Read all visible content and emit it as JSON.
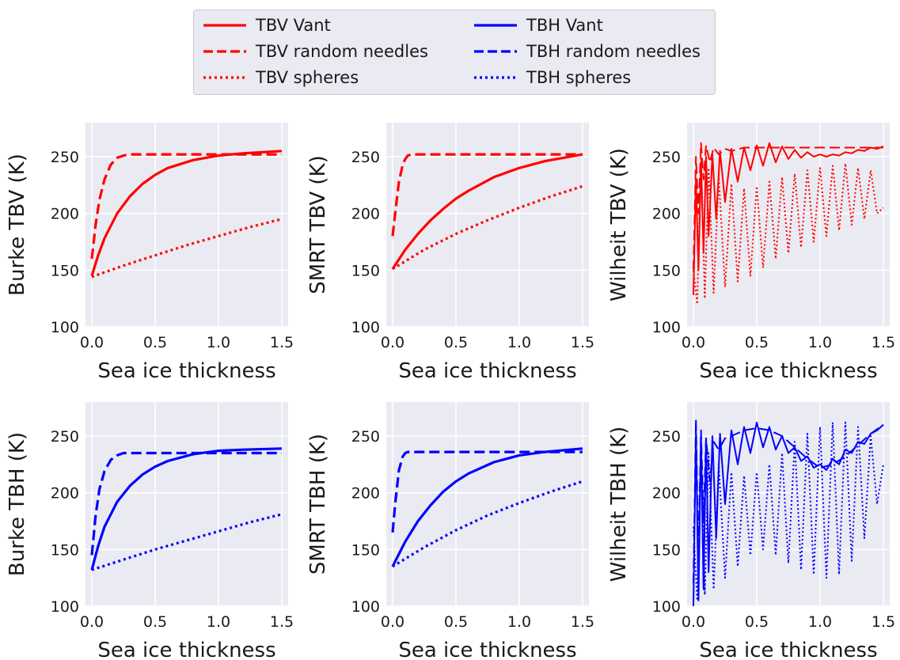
{
  "legend": {
    "items": [
      {
        "label": "TBV Vant",
        "color": "#ff0000",
        "style": "solid"
      },
      {
        "label": "TBV random needles",
        "color": "#ff0000",
        "style": "dashed"
      },
      {
        "label": "TBV spheres",
        "color": "#ff0000",
        "style": "dotted"
      },
      {
        "label": "TBH Vant",
        "color": "#0000ff",
        "style": "solid"
      },
      {
        "label": "TBH random needles",
        "color": "#0000ff",
        "style": "dashed"
      },
      {
        "label": "TBH spheres",
        "color": "#0000ff",
        "style": "dotted"
      }
    ]
  },
  "chart_data": [
    {
      "type": "line",
      "xlabel": "Sea ice thickness",
      "ylabel": "Burke TBV (K)",
      "xlim": [
        -0.05,
        1.55
      ],
      "ylim": [
        100,
        280
      ],
      "xticks": [
        "0.0",
        "0.5",
        "1.0",
        "1.5"
      ],
      "yticks": [
        "100",
        "150",
        "200",
        "250"
      ],
      "grid": true,
      "series": [
        {
          "name": "TBV Vant",
          "color": "#ff0000",
          "style": "solid",
          "x": [
            0,
            0.05,
            0.1,
            0.2,
            0.3,
            0.4,
            0.5,
            0.6,
            0.8,
            1.0,
            1.2,
            1.5
          ],
          "y": [
            145,
            163,
            178,
            200,
            215,
            226,
            234,
            240,
            247,
            251,
            253,
            255
          ]
        },
        {
          "name": "TBV random needles",
          "color": "#ff0000",
          "style": "dashed",
          "x": [
            0,
            0.03,
            0.06,
            0.1,
            0.15,
            0.2,
            0.25,
            0.3,
            0.5,
            1.0,
            1.5
          ],
          "y": [
            160,
            190,
            212,
            230,
            243,
            249,
            251,
            252,
            252,
            252,
            252
          ]
        },
        {
          "name": "TBV spheres",
          "color": "#ff0000",
          "style": "dotted",
          "x": [
            0,
            0.25,
            0.5,
            0.75,
            1.0,
            1.25,
            1.5
          ],
          "y": [
            144,
            154,
            163,
            172,
            180,
            188,
            195
          ]
        }
      ]
    },
    {
      "type": "line",
      "xlabel": "Sea ice thickness",
      "ylabel": "SMRT TBV (K)",
      "xlim": [
        -0.05,
        1.55
      ],
      "ylim": [
        100,
        280
      ],
      "xticks": [
        "0.0",
        "0.5",
        "1.0",
        "1.5"
      ],
      "yticks": [
        "100",
        "150",
        "200",
        "250"
      ],
      "grid": true,
      "series": [
        {
          "name": "TBV Vant",
          "color": "#ff0000",
          "style": "solid",
          "x": [
            0,
            0.1,
            0.2,
            0.3,
            0.4,
            0.5,
            0.6,
            0.8,
            1.0,
            1.2,
            1.5
          ],
          "y": [
            151,
            168,
            182,
            194,
            204,
            213,
            220,
            232,
            240,
            246,
            252
          ]
        },
        {
          "name": "TBV random needles",
          "color": "#ff0000",
          "style": "dashed",
          "x": [
            0,
            0.02,
            0.05,
            0.08,
            0.1,
            0.12,
            0.15,
            0.2,
            0.5,
            1.0,
            1.5
          ],
          "y": [
            180,
            200,
            228,
            243,
            248,
            251,
            252,
            252,
            252,
            252,
            252
          ]
        },
        {
          "name": "TBV spheres",
          "color": "#ff0000",
          "style": "dotted",
          "x": [
            0,
            0.25,
            0.5,
            0.75,
            1.0,
            1.25,
            1.5
          ],
          "y": [
            151,
            168,
            182,
            194,
            205,
            215,
            224
          ]
        }
      ]
    },
    {
      "type": "line",
      "xlabel": "Sea ice thickness",
      "ylabel": "Wilheit TBV (K)",
      "xlim": [
        -0.05,
        1.55
      ],
      "ylim": [
        100,
        280
      ],
      "xticks": [
        "0.0",
        "0.5",
        "1.0",
        "1.5"
      ],
      "yticks": [
        "100",
        "150",
        "200",
        "250"
      ],
      "grid": true,
      "series": [
        {
          "name": "TBV Vant",
          "color": "#ff0000",
          "style": "solid",
          "x": [
            0.0,
            0.02,
            0.04,
            0.06,
            0.08,
            0.1,
            0.12,
            0.15,
            0.18,
            0.21,
            0.25,
            0.3,
            0.35,
            0.4,
            0.45,
            0.5,
            0.55,
            0.6,
            0.65,
            0.7,
            0.75,
            0.8,
            0.85,
            0.9,
            0.95,
            1.0,
            1.05,
            1.1,
            1.15,
            1.2,
            1.25,
            1.3,
            1.35,
            1.4,
            1.45,
            1.5
          ],
          "y": [
            128,
            230,
            150,
            245,
            165,
            250,
            180,
            252,
            195,
            255,
            210,
            257,
            228,
            258,
            238,
            260,
            242,
            262,
            245,
            259,
            248,
            256,
            249,
            254,
            250,
            252,
            250,
            252,
            251,
            254,
            253,
            256,
            255,
            258,
            257,
            259
          ]
        },
        {
          "name": "TBV random needles",
          "color": "#ff0000",
          "style": "dashed",
          "x": [
            0.0,
            0.02,
            0.04,
            0.06,
            0.08,
            0.1,
            0.13,
            0.16,
            0.2,
            0.25,
            0.3,
            0.4,
            0.5,
            0.6,
            0.8,
            1.0,
            1.2,
            1.5
          ],
          "y": [
            150,
            250,
            200,
            262,
            230,
            260,
            245,
            258,
            252,
            257,
            255,
            258,
            258,
            258,
            258,
            258,
            258,
            258
          ]
        },
        {
          "name": "TBV spheres",
          "color": "#ff0000",
          "style": "dotted",
          "x": [
            0.0,
            0.03,
            0.06,
            0.09,
            0.12,
            0.16,
            0.2,
            0.25,
            0.3,
            0.35,
            0.4,
            0.45,
            0.5,
            0.55,
            0.6,
            0.65,
            0.7,
            0.75,
            0.8,
            0.85,
            0.9,
            0.95,
            1.0,
            1.05,
            1.1,
            1.15,
            1.2,
            1.25,
            1.3,
            1.35,
            1.4,
            1.45,
            1.5
          ],
          "y": [
            150,
            120,
            250,
            125,
            240,
            130,
            232,
            135,
            226,
            140,
            222,
            145,
            224,
            152,
            228,
            160,
            232,
            165,
            235,
            170,
            238,
            175,
            240,
            180,
            242,
            185,
            244,
            190,
            240,
            195,
            238,
            200,
            205
          ]
        }
      ]
    },
    {
      "type": "line",
      "xlabel": "Sea ice thickness",
      "ylabel": "Burke TBH (K)",
      "xlim": [
        -0.05,
        1.55
      ],
      "ylim": [
        100,
        280
      ],
      "xticks": [
        "0.0",
        "0.5",
        "1.0",
        "1.5"
      ],
      "yticks": [
        "100",
        "150",
        "200",
        "250"
      ],
      "grid": true,
      "series": [
        {
          "name": "TBH Vant",
          "color": "#0000ff",
          "style": "solid",
          "x": [
            0,
            0.05,
            0.1,
            0.2,
            0.3,
            0.4,
            0.5,
            0.6,
            0.8,
            1.0,
            1.2,
            1.5
          ],
          "y": [
            132,
            153,
            170,
            192,
            206,
            216,
            223,
            228,
            234,
            237,
            238,
            239
          ]
        },
        {
          "name": "TBH random needles",
          "color": "#0000ff",
          "style": "dashed",
          "x": [
            0,
            0.03,
            0.06,
            0.1,
            0.15,
            0.2,
            0.25,
            0.3,
            0.5,
            1.0,
            1.5
          ],
          "y": [
            145,
            180,
            203,
            219,
            229,
            233,
            235,
            235,
            235,
            235,
            235
          ]
        },
        {
          "name": "TBH spheres",
          "color": "#0000ff",
          "style": "dotted",
          "x": [
            0,
            0.25,
            0.5,
            0.75,
            1.0,
            1.25,
            1.5
          ],
          "y": [
            132,
            141,
            150,
            158,
            166,
            174,
            181
          ]
        }
      ]
    },
    {
      "type": "line",
      "xlabel": "Sea ice thickness",
      "ylabel": "SMRT TBH (K)",
      "xlim": [
        -0.05,
        1.55
      ],
      "ylim": [
        100,
        280
      ],
      "xticks": [
        "0.0",
        "0.5",
        "1.0",
        "1.5"
      ],
      "yticks": [
        "100",
        "150",
        "200",
        "250"
      ],
      "grid": true,
      "series": [
        {
          "name": "TBH Vant",
          "color": "#0000ff",
          "style": "solid",
          "x": [
            0,
            0.1,
            0.2,
            0.3,
            0.4,
            0.5,
            0.6,
            0.8,
            1.0,
            1.2,
            1.5
          ],
          "y": [
            135,
            157,
            175,
            189,
            201,
            210,
            217,
            227,
            233,
            236,
            239
          ]
        },
        {
          "name": "TBH random needles",
          "color": "#0000ff",
          "style": "dashed",
          "x": [
            0,
            0.02,
            0.05,
            0.08,
            0.1,
            0.12,
            0.15,
            0.2,
            0.5,
            1.0,
            1.5
          ],
          "y": [
            165,
            190,
            220,
            232,
            235,
            236,
            236,
            236,
            236,
            236,
            236
          ]
        },
        {
          "name": "TBH spheres",
          "color": "#0000ff",
          "style": "dotted",
          "x": [
            0,
            0.25,
            0.5,
            0.75,
            1.0,
            1.25,
            1.5
          ],
          "y": [
            135,
            152,
            167,
            180,
            191,
            201,
            210
          ]
        }
      ]
    },
    {
      "type": "line",
      "xlabel": "Sea ice thickness",
      "ylabel": "Wilheit TBH (K)",
      "xlim": [
        -0.05,
        1.55
      ],
      "ylim": [
        100,
        280
      ],
      "xticks": [
        "0.0",
        "0.5",
        "1.0",
        "1.5"
      ],
      "yticks": [
        "100",
        "150",
        "200",
        "250"
      ],
      "grid": true,
      "series": [
        {
          "name": "TBH Vant",
          "color": "#0000ff",
          "style": "solid",
          "x": [
            0.0,
            0.02,
            0.04,
            0.06,
            0.08,
            0.1,
            0.12,
            0.15,
            0.18,
            0.21,
            0.25,
            0.3,
            0.35,
            0.4,
            0.45,
            0.5,
            0.55,
            0.6,
            0.65,
            0.7,
            0.75,
            0.8,
            0.85,
            0.9,
            0.95,
            1.0,
            1.05,
            1.1,
            1.15,
            1.2,
            1.25,
            1.3,
            1.35,
            1.4,
            1.45,
            1.5
          ],
          "y": [
            100,
            255,
            105,
            250,
            115,
            248,
            130,
            250,
            160,
            252,
            190,
            255,
            225,
            258,
            235,
            262,
            240,
            258,
            238,
            250,
            235,
            240,
            228,
            232,
            222,
            225,
            220,
            230,
            225,
            238,
            235,
            245,
            243,
            252,
            255,
            260
          ]
        },
        {
          "name": "TBH random needles",
          "color": "#0000ff",
          "style": "dashed",
          "x": [
            0.0,
            0.02,
            0.04,
            0.06,
            0.08,
            0.1,
            0.13,
            0.16,
            0.2,
            0.25,
            0.3,
            0.4,
            0.5,
            0.6,
            0.7,
            0.8,
            0.9,
            1.0,
            1.1,
            1.2,
            1.3,
            1.4,
            1.5
          ],
          "y": [
            120,
            265,
            140,
            255,
            175,
            248,
            210,
            245,
            238,
            248,
            250,
            255,
            257,
            255,
            250,
            240,
            230,
            222,
            225,
            232,
            242,
            252,
            260
          ]
        },
        {
          "name": "TBH spheres",
          "color": "#0000ff",
          "style": "dotted",
          "x": [
            0.0,
            0.03,
            0.06,
            0.09,
            0.12,
            0.16,
            0.2,
            0.25,
            0.3,
            0.35,
            0.4,
            0.45,
            0.5,
            0.55,
            0.6,
            0.65,
            0.7,
            0.75,
            0.8,
            0.85,
            0.9,
            0.95,
            1.0,
            1.05,
            1.1,
            1.15,
            1.2,
            1.25,
            1.3,
            1.35,
            1.4,
            1.45,
            1.5
          ],
          "y": [
            170,
            105,
            245,
            110,
            235,
            115,
            225,
            125,
            218,
            135,
            215,
            145,
            218,
            150,
            225,
            145,
            235,
            138,
            245,
            132,
            252,
            128,
            258,
            125,
            262,
            128,
            262,
            140,
            258,
            160,
            250,
            190,
            225
          ]
        }
      ]
    }
  ]
}
